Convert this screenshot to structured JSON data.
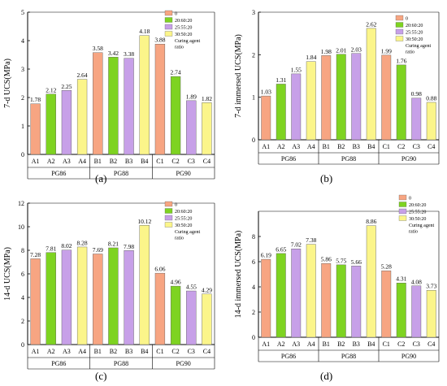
{
  "panel_tags": [
    "(a)",
    "(b)",
    "(c)",
    "(d)"
  ],
  "chart_data": [
    {
      "type": "bar",
      "panel": "(a)",
      "ylabel": "7-d UCS(MPa)",
      "ylim": [
        0,
        5
      ],
      "yticks": [
        0,
        1,
        2,
        3,
        4,
        5
      ],
      "categories": [
        "A1",
        "A2",
        "A3",
        "A4",
        "B1",
        "B2",
        "B3",
        "B4",
        "C1",
        "C2",
        "C3",
        "C4"
      ],
      "groups": [
        "PG86",
        "PG88",
        "PG90"
      ],
      "values": [
        1.78,
        2.12,
        2.25,
        2.64,
        3.58,
        3.42,
        3.38,
        4.18,
        3.88,
        2.74,
        1.89,
        1.82
      ],
      "labels": [
        "1.78",
        "2.12",
        "2.25",
        "2.64",
        "3.58",
        "3.42",
        "3.38",
        "4.18",
        "3.88",
        "2.74",
        "1.89",
        "1.82"
      ],
      "legend": {
        "entries": [
          "0",
          "20:60:20",
          "25:55:20",
          "30:50:20"
        ],
        "caption": [
          "Curing agent",
          "ratio"
        ],
        "placement": "top-right"
      }
    },
    {
      "type": "bar",
      "panel": "(b)",
      "ylabel": "7-d immersed UCS(MPa)",
      "ylim": [
        0,
        3
      ],
      "yticks": [
        0,
        1,
        2,
        3
      ],
      "categories": [
        "A1",
        "A2",
        "A3",
        "A4",
        "B1",
        "B2",
        "B3",
        "B4",
        "C1",
        "C2",
        "C3",
        "C4"
      ],
      "groups": [
        "PG86",
        "PG88",
        "PG90"
      ],
      "values": [
        1.03,
        1.31,
        1.55,
        1.84,
        1.98,
        2.01,
        2.03,
        2.62,
        1.99,
        1.76,
        0.98,
        0.88
      ],
      "labels": [
        "1.03",
        "1.31",
        "1.55",
        "1.84",
        "1.98",
        "2.01",
        "2.03",
        "2.62",
        "1.99",
        "1.76",
        "0.98",
        "0.88"
      ],
      "legend": {
        "entries": [
          "0",
          "20:60:20",
          "25:55:20",
          "30:50:20"
        ],
        "caption": [
          "Curing agent",
          "ratio"
        ],
        "placement": "top-right"
      }
    },
    {
      "type": "bar",
      "panel": "(c)",
      "ylabel": "14-d UCS(MPa)",
      "ylim": [
        0,
        12
      ],
      "yticks": [
        0,
        2,
        4,
        6,
        8,
        10,
        12
      ],
      "categories": [
        "A1",
        "A2",
        "A3",
        "A4",
        "B1",
        "B2",
        "B3",
        "B4",
        "C1",
        "C2",
        "C3",
        "C4"
      ],
      "groups": [
        "PG86",
        "PG88",
        "PG90"
      ],
      "values": [
        7.28,
        7.81,
        8.02,
        8.28,
        7.69,
        8.21,
        7.98,
        10.12,
        6.06,
        4.96,
        4.55,
        4.29
      ],
      "labels": [
        "7.28",
        "7.81",
        "8.02",
        "8.28",
        "7.69",
        "8.21",
        "7.98",
        "10.12",
        "6.06",
        "4.96",
        "4.55",
        "4.29"
      ],
      "legend": {
        "entries": [
          "0",
          "20:60:20",
          "25:55:20",
          "30:50:20"
        ],
        "caption": [
          "Curing agent",
          "ratio"
        ],
        "placement": "top-right"
      }
    },
    {
      "type": "bar",
      "panel": "(d)",
      "ylabel": "14-d immersed UCS(MPa)",
      "ylim": [
        0,
        10
      ],
      "yticks": [
        0,
        2,
        4,
        6,
        8
      ],
      "categories": [
        "A1",
        "A2",
        "A3",
        "A4",
        "B1",
        "B2",
        "B3",
        "B4",
        "C1",
        "C2",
        "C3",
        "C4"
      ],
      "groups": [
        "PG86",
        "PG88",
        "PG90"
      ],
      "values": [
        6.19,
        6.65,
        7.02,
        7.38,
        5.86,
        5.75,
        5.66,
        8.86,
        5.28,
        4.31,
        4.08,
        3.73
      ],
      "labels": [
        "6.19",
        "6.65",
        "7.02",
        "7.38",
        "5.86",
        "5.75",
        "5.66",
        "8.86",
        "5.28",
        "4.31",
        "4.08",
        "3.73"
      ],
      "legend": {
        "entries": [
          "0",
          "20:60:20",
          "25:55:20",
          "30:50:20"
        ],
        "caption": [
          "Curing agent",
          "ratio"
        ],
        "placement": "top-right"
      }
    }
  ],
  "colors": {
    "series": [
      "#f7a582",
      "#7ed321",
      "#c7a0e8",
      "#fbf58a"
    ],
    "bar_stroke": "#555555",
    "axis": "#000000"
  }
}
